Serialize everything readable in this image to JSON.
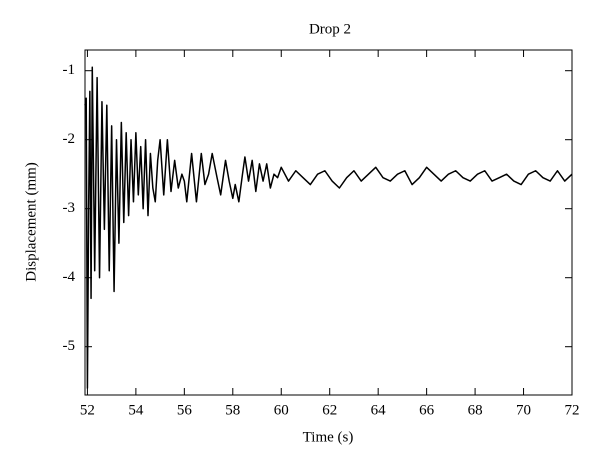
{
  "chart_data": {
    "type": "line",
    "title": "Drop 2",
    "xlabel": "Time (s)",
    "ylabel": "Displacement (mm)",
    "x": [
      51.9,
      51.95,
      52.0,
      52.05,
      52.1,
      52.15,
      52.2,
      52.3,
      52.4,
      52.5,
      52.6,
      52.7,
      52.8,
      52.9,
      53.0,
      53.1,
      53.2,
      53.3,
      53.4,
      53.5,
      53.6,
      53.7,
      53.8,
      53.9,
      54.0,
      54.1,
      54.2,
      54.3,
      54.4,
      54.5,
      54.6,
      54.7,
      54.8,
      54.9,
      55.0,
      55.15,
      55.3,
      55.45,
      55.6,
      55.75,
      55.9,
      56.0,
      56.1,
      56.3,
      56.5,
      56.7,
      56.85,
      57.0,
      57.15,
      57.35,
      57.5,
      57.7,
      57.85,
      58.0,
      58.1,
      58.25,
      58.4,
      58.5,
      58.65,
      58.8,
      58.95,
      59.1,
      59.25,
      59.4,
      59.55,
      59.7,
      59.85,
      60.0,
      60.3,
      60.6,
      60.9,
      61.2,
      61.5,
      61.8,
      62.1,
      62.4,
      62.7,
      63.0,
      63.3,
      63.6,
      63.9,
      64.2,
      64.5,
      64.8,
      65.1,
      65.4,
      65.7,
      66.0,
      66.3,
      66.6,
      66.9,
      67.2,
      67.5,
      67.8,
      68.1,
      68.4,
      68.7,
      69.0,
      69.3,
      69.6,
      69.9,
      70.2,
      70.5,
      70.8,
      71.1,
      71.4,
      71.7,
      72.0
    ],
    "series": [
      {
        "name": "Drop 2",
        "color": "#000000",
        "values": [
          -1.5,
          -1.4,
          -5.6,
          -3.0,
          -1.3,
          -4.3,
          -0.95,
          -3.9,
          -1.1,
          -4.0,
          -1.45,
          -3.3,
          -1.5,
          -3.9,
          -1.8,
          -4.2,
          -2.0,
          -3.5,
          -1.75,
          -3.2,
          -1.9,
          -3.1,
          -2.0,
          -2.9,
          -1.9,
          -2.8,
          -2.1,
          -3.0,
          -2.0,
          -3.1,
          -2.2,
          -2.7,
          -2.9,
          -2.3,
          -2.0,
          -2.8,
          -2.0,
          -2.75,
          -2.3,
          -2.7,
          -2.5,
          -2.6,
          -2.9,
          -2.2,
          -2.9,
          -2.2,
          -2.65,
          -2.5,
          -2.2,
          -2.55,
          -2.8,
          -2.3,
          -2.6,
          -2.85,
          -2.65,
          -2.9,
          -2.5,
          -2.25,
          -2.6,
          -2.3,
          -2.75,
          -2.35,
          -2.6,
          -2.35,
          -2.7,
          -2.5,
          -2.55,
          -2.4,
          -2.6,
          -2.45,
          -2.55,
          -2.65,
          -2.5,
          -2.45,
          -2.6,
          -2.7,
          -2.55,
          -2.45,
          -2.6,
          -2.5,
          -2.4,
          -2.55,
          -2.6,
          -2.5,
          -2.45,
          -2.65,
          -2.55,
          -2.4,
          -2.5,
          -2.6,
          -2.5,
          -2.45,
          -2.55,
          -2.6,
          -2.5,
          -2.45,
          -2.6,
          -2.55,
          -2.5,
          -2.6,
          -2.65,
          -2.5,
          -2.45,
          -2.55,
          -2.6,
          -2.45,
          -2.6,
          -2.5
        ]
      }
    ],
    "xlim": [
      51.9,
      72
    ],
    "xticks": [
      52,
      54,
      56,
      58,
      60,
      62,
      64,
      66,
      68,
      70,
      72
    ],
    "ylim": [
      -5.7,
      -0.7
    ],
    "yticks": [
      -5,
      -4,
      -3,
      -2,
      -1
    ]
  }
}
